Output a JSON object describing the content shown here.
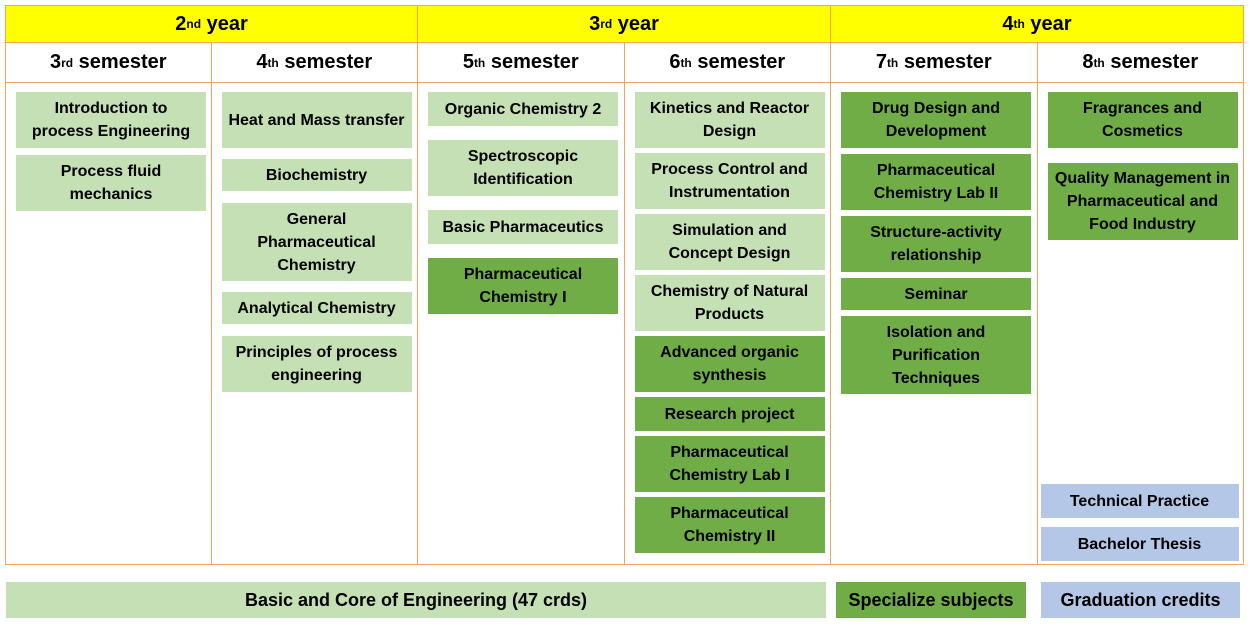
{
  "years": [
    {
      "num": "2",
      "sup": "nd",
      "word": "year"
    },
    {
      "num": "3",
      "sup": "rd",
      "word": "year"
    },
    {
      "num": "4",
      "sup": "th",
      "word": "year"
    }
  ],
  "semesters": [
    {
      "num": "3",
      "sup": "rd",
      "word": "semester"
    },
    {
      "num": "4",
      "sup": "th",
      "word": "semester"
    },
    {
      "num": "5",
      "sup": "th",
      "word": "semester"
    },
    {
      "num": "6",
      "sup": "th",
      "word": "semester"
    },
    {
      "num": "7",
      "sup": "th",
      "word": "semester"
    },
    {
      "num": "8",
      "sup": "th",
      "word": "semester"
    }
  ],
  "columns": [
    [
      {
        "label": "Introduction to process Engineering",
        "kind": "light"
      },
      {
        "label": "Process fluid mechanics",
        "kind": "light"
      }
    ],
    [
      {
        "label": "Heat and Mass transfer",
        "kind": "light"
      },
      {
        "label": "Biochemistry",
        "kind": "light"
      },
      {
        "label": "General Pharmaceutical Chemistry",
        "kind": "light"
      },
      {
        "label": "Analytical Chemistry",
        "kind": "light"
      },
      {
        "label": "Principles of process engineering",
        "kind": "light"
      }
    ],
    [
      {
        "label": "Organic Chemistry 2",
        "kind": "light"
      },
      {
        "label": "Spectroscopic Identification",
        "kind": "light"
      },
      {
        "label": "Basic Pharmaceutics",
        "kind": "light"
      },
      {
        "label": "Pharmaceutical Chemistry I",
        "kind": "dark"
      }
    ],
    [
      {
        "label": "Kinetics and Reactor Design",
        "kind": "light"
      },
      {
        "label": "Process Control and Instrumentation",
        "kind": "light"
      },
      {
        "label": "Simulation and Concept Design",
        "kind": "light"
      },
      {
        "label": "Chemistry of Natural Products",
        "kind": "light"
      },
      {
        "label": "Advanced organic synthesis",
        "kind": "dark"
      },
      {
        "label": "Research project",
        "kind": "dark"
      },
      {
        "label": "Pharmaceutical Chemistry Lab I",
        "kind": "dark"
      },
      {
        "label": "Pharmaceutical Chemistry II",
        "kind": "dark"
      }
    ],
    [
      {
        "label": "Drug Design and Development",
        "kind": "dark"
      },
      {
        "label": "Pharmaceutical Chemistry Lab II",
        "kind": "dark"
      },
      {
        "label": "Structure-activity relationship",
        "kind": "dark"
      },
      {
        "label": "Seminar",
        "kind": "dark"
      },
      {
        "label": "Isolation and Purification Techniques",
        "kind": "dark"
      }
    ],
    [
      {
        "label": "Fragrances and Cosmetics",
        "kind": "dark"
      },
      {
        "label": "Quality Management in Pharmaceutical and Food Industry",
        "kind": "dark"
      },
      {
        "label": "Technical Practice",
        "kind": "blue"
      },
      {
        "label": "Bachelor Thesis",
        "kind": "blue"
      }
    ]
  ],
  "legend": {
    "basic": "Basic and Core of Engineering (47 crds)",
    "specialize": "Specialize subjects",
    "graduation": "Graduation credits"
  },
  "colors": {
    "year_header": "#ffff00",
    "basic": "#c5e0b4",
    "specialize": "#70ad47",
    "graduation": "#b4c7e7",
    "border": "#f4a460"
  }
}
